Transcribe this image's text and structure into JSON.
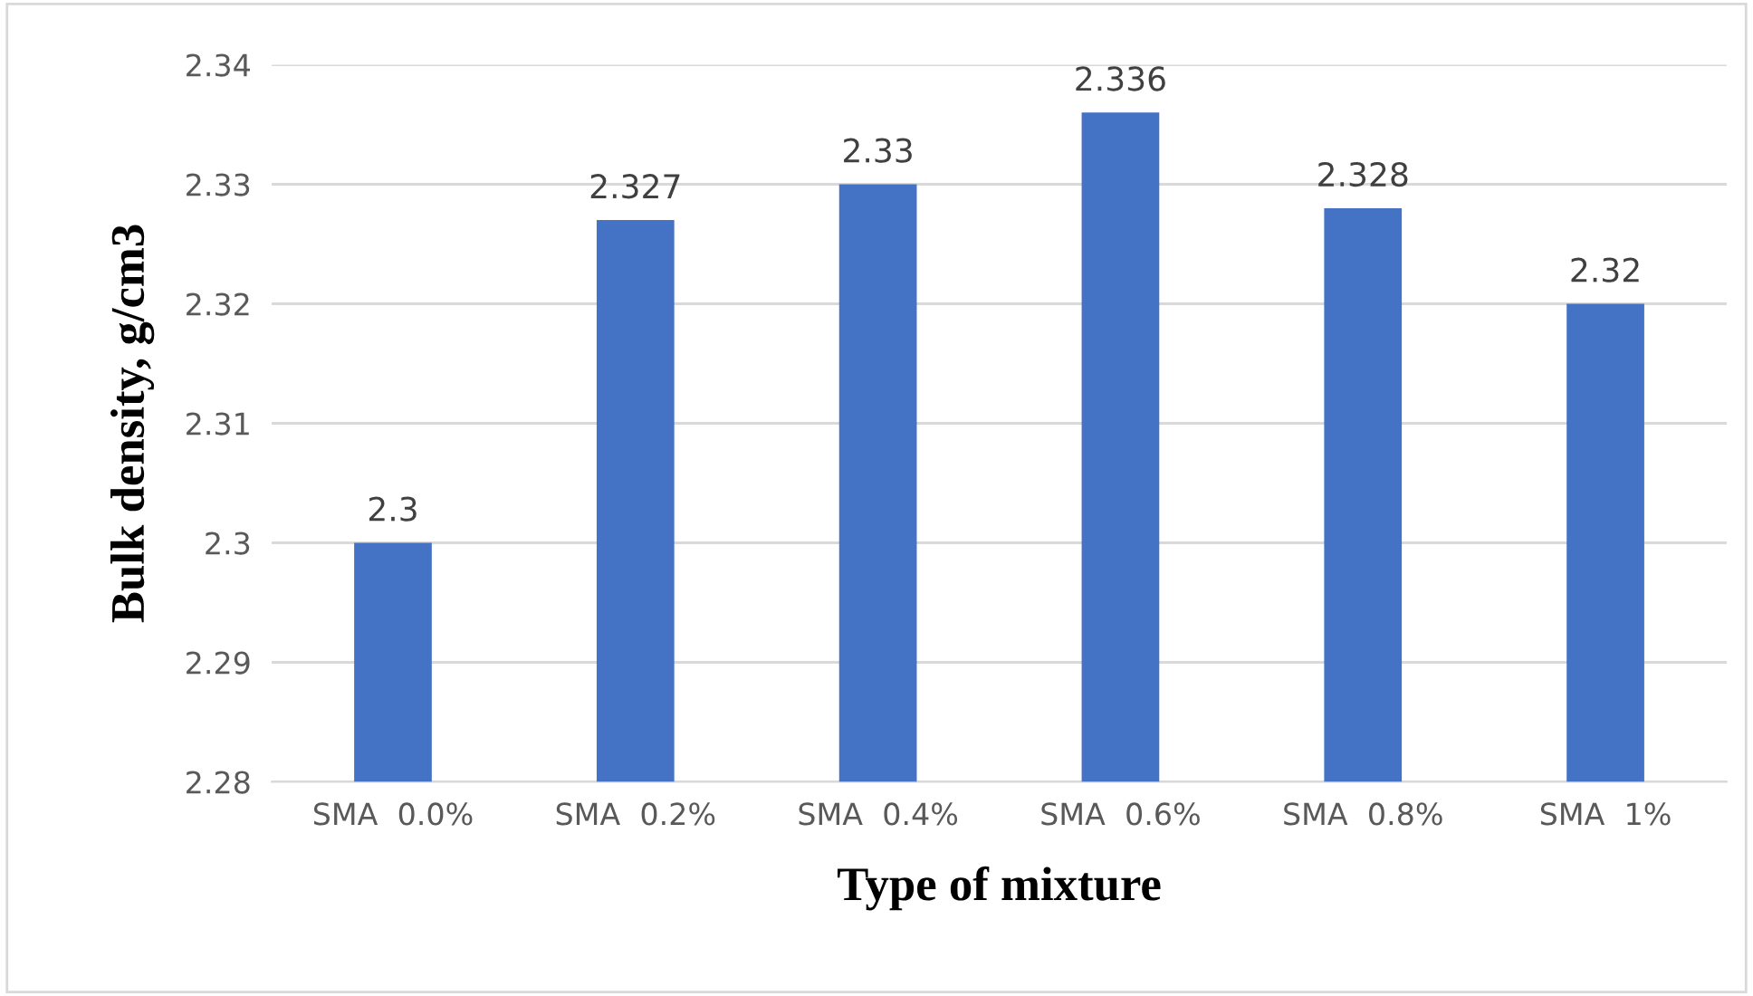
{
  "chart_data": {
    "type": "bar",
    "xlabel": "Type of mixture",
    "ylabel": "Bulk density, g/cm3",
    "categories": [
      "SMA  0.0%",
      "SMA  0.2%",
      "SMA  0.4%",
      "SMA  0.6%",
      "SMA  0.8%",
      "SMA  1%"
    ],
    "values": [
      2.3,
      2.327,
      2.33,
      2.336,
      2.328,
      2.32
    ],
    "color": "#4472c4",
    "ylim": [
      2.28,
      2.34
    ],
    "yticks": [
      2.28,
      2.29,
      2.3,
      2.31,
      2.32,
      2.33,
      2.34
    ],
    "grid": "y",
    "data_labels": true
  }
}
